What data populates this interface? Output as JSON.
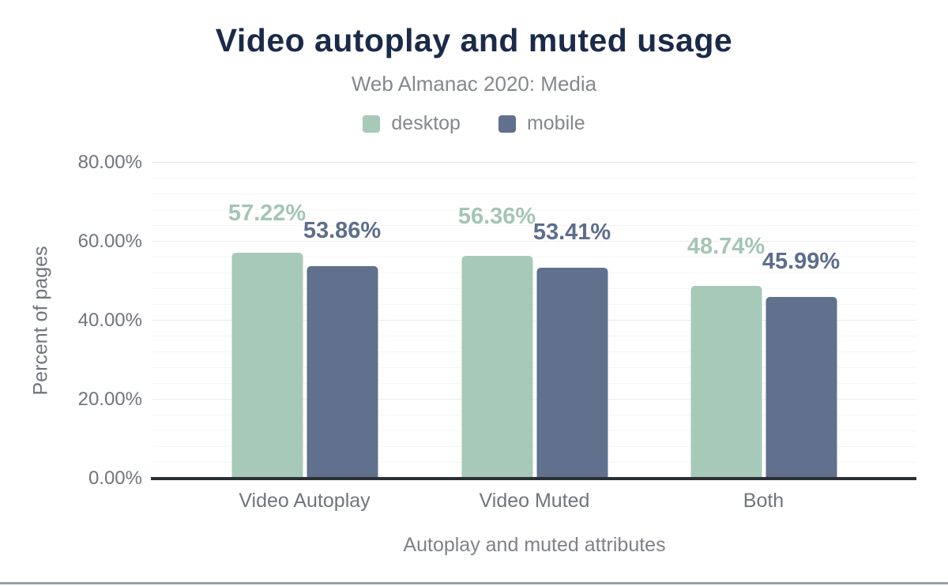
{
  "chart_data": {
    "type": "bar",
    "title": "Video autoplay and muted usage",
    "subtitle": "Web Almanac 2020: Media",
    "xlabel": "Autoplay and muted attributes",
    "ylabel": "Percent of pages",
    "categories": [
      "Video Autoplay",
      "Video Muted",
      "Both"
    ],
    "series": [
      {
        "name": "desktop",
        "color": "#a7c9b8",
        "label_color": "#a4c5b4",
        "values": [
          57.22,
          56.36,
          48.74
        ],
        "labels": [
          "57.22%",
          "56.36%",
          "48.74%"
        ]
      },
      {
        "name": "mobile",
        "color": "#61708d",
        "label_color": "#5d6d8d",
        "values": [
          53.86,
          53.41,
          45.99
        ],
        "labels": [
          "53.86%",
          "53.41%",
          "45.99%"
        ]
      }
    ],
    "ylim": [
      0,
      80
    ],
    "yticks": [
      0,
      20,
      40,
      60,
      80
    ],
    "ytick_labels": [
      "0.00%",
      "20.00%",
      "40.00%",
      "60.00%",
      "80.00%"
    ],
    "grid": {
      "on": true,
      "minor_step_percent": 4,
      "major_step_percent": 20
    },
    "legend_position": "top",
    "colors": {
      "title": "#1b2a49",
      "subtitle": "#84888d",
      "axis_text": "#70757c",
      "axis_line": "#2b3036",
      "gridline_major": "#ebebee",
      "gridline_minor": "#f5f5f7",
      "bottom_rule": "#9aa0a6"
    }
  }
}
